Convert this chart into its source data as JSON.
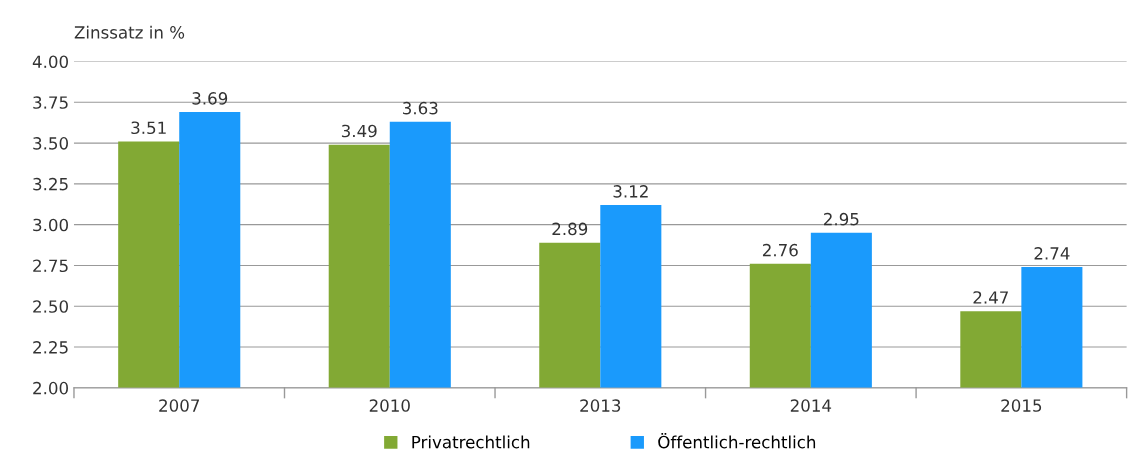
{
  "chart_data": {
    "type": "bar",
    "ylabel": "Zinssatz in %",
    "categories": [
      "2007",
      "2010",
      "2013",
      "2014",
      "2015"
    ],
    "series": [
      {
        "name": "Privatrechtlich",
        "color": "#82a934",
        "values": [
          3.51,
          3.49,
          2.89,
          2.76,
          2.47
        ]
      },
      {
        "name": "Öffentlich-rechtlich",
        "color": "#1a9afc",
        "values": [
          3.69,
          3.63,
          3.12,
          2.95,
          2.74
        ]
      }
    ],
    "ylim": [
      2,
      4
    ],
    "yticks": [
      {
        "value": 2,
        "label": "2.00"
      },
      {
        "value": 2.25,
        "label": "2.25"
      },
      {
        "value": 2.5,
        "label": "2.50"
      },
      {
        "value": 2.75,
        "label": "2.75"
      },
      {
        "value": 3,
        "label": "3.00"
      },
      {
        "value": 3.25,
        "label": "3.25"
      },
      {
        "value": 3.5,
        "label": "3.50"
      },
      {
        "value": 3.75,
        "label": "3.75"
      },
      {
        "value": 4,
        "label": "4.00"
      }
    ],
    "grid": "y",
    "legend": "bottom",
    "data_labels": true
  }
}
